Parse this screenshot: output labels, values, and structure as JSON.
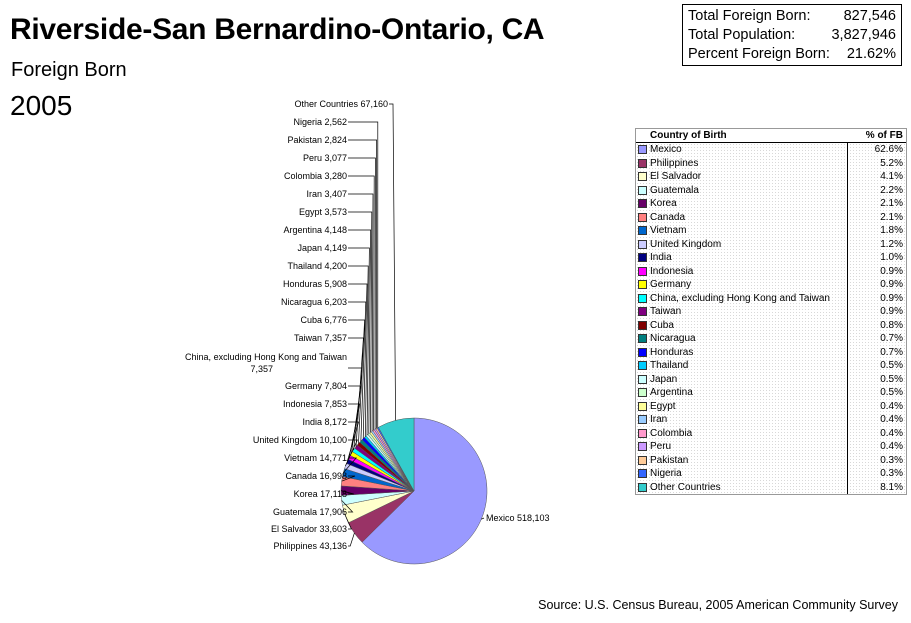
{
  "header": {
    "title": "Riverside-San Bernardino-Ontario, CA",
    "subtitle": "Foreign Born",
    "year": "2005"
  },
  "stats": {
    "foreign_born_label": "Total Foreign Born:",
    "foreign_born_value": "827,546",
    "population_label": "Total Population:",
    "population_value": "3,827,946",
    "percent_label": "Percent Foreign Born:",
    "percent_value": "21.62%"
  },
  "source": "Source: U.S. Census Bureau, 2005 American Community Survey",
  "legend": {
    "col_country": "Country of Birth",
    "col_pct": "% of FB"
  },
  "chart_data": {
    "type": "pie",
    "series": [
      {
        "name": "Mexico",
        "label": "Mexico 518,103",
        "value": 518103,
        "pct": "62.6%",
        "color": "#9999ff"
      },
      {
        "name": "Philippines",
        "label": "Philippines 43,136",
        "value": 43136,
        "pct": "5.2%",
        "color": "#993366"
      },
      {
        "name": "El Salvador",
        "label": "El Salvador 33,603",
        "value": 33603,
        "pct": "4.1%",
        "color": "#ffffcc"
      },
      {
        "name": "Guatemala",
        "label": "Guatemala 17,906",
        "value": 17906,
        "pct": "2.2%",
        "color": "#ccffff"
      },
      {
        "name": "Korea",
        "label": "Korea 17,118",
        "value": 17118,
        "pct": "2.1%",
        "color": "#660066"
      },
      {
        "name": "Canada",
        "label": "Canada 16,998",
        "value": 16998,
        "pct": "2.1%",
        "color": "#ff8080"
      },
      {
        "name": "Vietnam",
        "label": "Vietnam 14,771",
        "value": 14771,
        "pct": "1.8%",
        "color": "#0066cc"
      },
      {
        "name": "United Kingdom",
        "label": "United Kingdom 10,100",
        "value": 10100,
        "pct": "1.2%",
        "color": "#ccccff"
      },
      {
        "name": "India",
        "label": "India 8,172",
        "value": 8172,
        "pct": "1.0%",
        "color": "#000080"
      },
      {
        "name": "Indonesia",
        "label": "Indonesia 7,853",
        "value": 7853,
        "pct": "0.9%",
        "color": "#ff00ff"
      },
      {
        "name": "Germany",
        "label": "Germany 7,804",
        "value": 7804,
        "pct": "0.9%",
        "color": "#ffff00"
      },
      {
        "name": "China, excluding Hong Kong and Taiwan",
        "label": "China, excluding Hong Kong and Taiwan 7,357",
        "value": 7357,
        "pct": "0.9%",
        "color": "#00ffff"
      },
      {
        "name": "Taiwan",
        "label": "Taiwan 7,357",
        "value": 7357,
        "pct": "0.9%",
        "color": "#800080"
      },
      {
        "name": "Cuba",
        "label": "Cuba 6,776",
        "value": 6776,
        "pct": "0.8%",
        "color": "#800000"
      },
      {
        "name": "Nicaragua",
        "label": "Nicaragua 6,203",
        "value": 6203,
        "pct": "0.7%",
        "color": "#008080"
      },
      {
        "name": "Honduras",
        "label": "Honduras 5,908",
        "value": 5908,
        "pct": "0.7%",
        "color": "#0000ff"
      },
      {
        "name": "Thailand",
        "label": "Thailand 4,200",
        "value": 4200,
        "pct": "0.5%",
        "color": "#00ccff"
      },
      {
        "name": "Japan",
        "label": "Japan 4,149",
        "value": 4149,
        "pct": "0.5%",
        "color": "#ccffff"
      },
      {
        "name": "Argentina",
        "label": "Argentina 4,148",
        "value": 4148,
        "pct": "0.5%",
        "color": "#ccffcc"
      },
      {
        "name": "Egypt",
        "label": "Egypt 3,573",
        "value": 3573,
        "pct": "0.4%",
        "color": "#ffff99"
      },
      {
        "name": "Iran",
        "label": "Iran 3,407",
        "value": 3407,
        "pct": "0.4%",
        "color": "#99ccff"
      },
      {
        "name": "Colombia",
        "label": "Colombia 3,280",
        "value": 3280,
        "pct": "0.4%",
        "color": "#ff99cc"
      },
      {
        "name": "Peru",
        "label": "Peru 3,077",
        "value": 3077,
        "pct": "0.4%",
        "color": "#cc99ff"
      },
      {
        "name": "Pakistan",
        "label": "Pakistan 2,824",
        "value": 2824,
        "pct": "0.3%",
        "color": "#ffcc99"
      },
      {
        "name": "Nigeria",
        "label": "Nigeria 2,562",
        "value": 2562,
        "pct": "0.3%",
        "color": "#3366ff"
      },
      {
        "name": "Other Countries",
        "label": "Other Countries 67,160",
        "value": 67160,
        "pct": "8.1%",
        "color": "#33cccc"
      }
    ]
  }
}
